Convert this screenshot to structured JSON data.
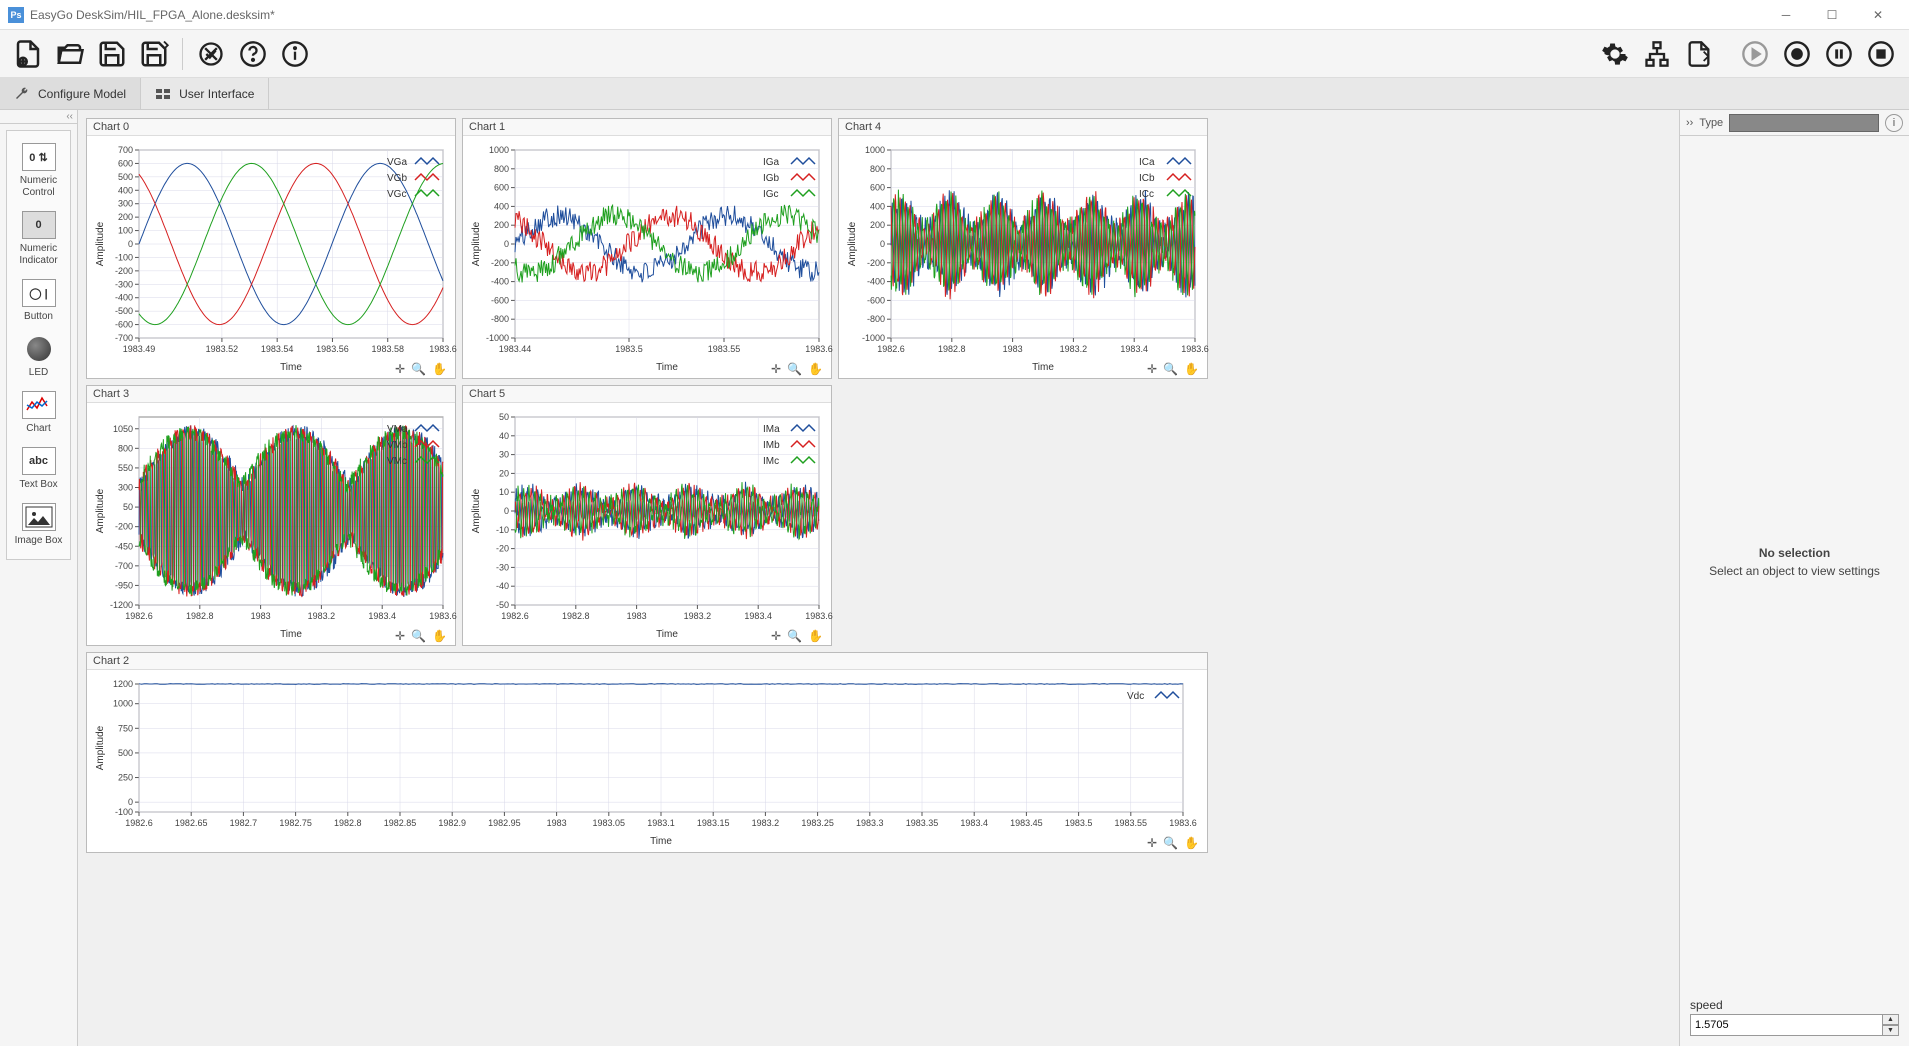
{
  "window": {
    "title": "EasyGo DeskSim/HIL_FPGA_Alone.desksim*",
    "app_badge": "Ps"
  },
  "tabs": {
    "configure": "Configure Model",
    "userinterface": "User Interface"
  },
  "palette": {
    "numeric_control": "Numeric Control",
    "numeric_indicator": "Numeric Indicator",
    "button": "Button",
    "led": "LED",
    "chart": "Chart",
    "textbox": "Text Box",
    "imagebox": "Image Box"
  },
  "right_panel": {
    "type_label": "Type",
    "no_selection_title": "No selection",
    "no_selection_sub": "Select an object to view settings",
    "speed_label": "speed",
    "speed_value": "1.5705"
  },
  "colors": {
    "series_a": "#1f4e9c",
    "series_b": "#d62020",
    "series_c": "#1fa01f",
    "grid": "#d8d8e8",
    "axis": "#555555",
    "bg": "#ffffff"
  },
  "charts": [
    {
      "id": "chart0",
      "title": "Chart 0",
      "xlabel": "Time",
      "ylabel": "Amplitude",
      "ylim": [
        -700,
        700
      ],
      "ytick_step": 100,
      "xlim": [
        1983.49,
        1983.6
      ],
      "xticks": [
        1983.49,
        1983.52,
        1983.54,
        1983.56,
        1983.58,
        1983.6
      ],
      "series": [
        {
          "name": "VGa",
          "color": "#1f4e9c",
          "type": "sine",
          "amp": 600,
          "freq": 90,
          "phase": 0
        },
        {
          "name": "VGb",
          "color": "#d62020",
          "type": "sine",
          "amp": 600,
          "freq": 90,
          "phase": 2.094
        },
        {
          "name": "VGc",
          "color": "#1fa01f",
          "type": "sine",
          "amp": 600,
          "freq": 90,
          "phase": 4.189
        }
      ]
    },
    {
      "id": "chart1",
      "title": "Chart 1",
      "xlabel": "Time",
      "ylabel": "Amplitude",
      "ylim": [
        -1000,
        1000
      ],
      "ytick_step": 200,
      "xlim": [
        1983.44,
        1983.6
      ],
      "xticks": [
        1983.44,
        1983.5,
        1983.55,
        1983.6
      ],
      "series": [
        {
          "name": "IGa",
          "color": "#1f4e9c",
          "type": "noisy_sine",
          "amp": 300,
          "freq": 70,
          "phase": 0,
          "noise": 120
        },
        {
          "name": "IGb",
          "color": "#d62020",
          "type": "noisy_sine",
          "amp": 300,
          "freq": 70,
          "phase": 2.094,
          "noise": 120
        },
        {
          "name": "IGc",
          "color": "#1fa01f",
          "type": "noisy_sine",
          "amp": 300,
          "freq": 70,
          "phase": 4.189,
          "noise": 120
        }
      ]
    },
    {
      "id": "chart4",
      "title": "Chart 4",
      "xlabel": "Time",
      "ylabel": "Amplitude",
      "ylim": [
        -1000,
        1000
      ],
      "ytick_step": 200,
      "xlim": [
        1982.6,
        1983.6
      ],
      "xticks": [
        1982.6,
        1982.8,
        1983,
        1983.2,
        1983.4,
        1983.6
      ],
      "series": [
        {
          "name": "ICa",
          "color": "#1f4e9c",
          "type": "dense_noise",
          "amp": 500,
          "freq": 400,
          "phase": 0,
          "noise": 100
        },
        {
          "name": "ICb",
          "color": "#d62020",
          "type": "dense_noise",
          "amp": 500,
          "freq": 400,
          "phase": 2.094,
          "noise": 100
        },
        {
          "name": "ICc",
          "color": "#1fa01f",
          "type": "dense_noise",
          "amp": 500,
          "freq": 400,
          "phase": 4.189,
          "noise": 100
        }
      ]
    },
    {
      "id": "chart3",
      "title": "Chart 3",
      "xlabel": "Time",
      "ylabel": "Amplitude",
      "ylim": [
        -1200,
        1200
      ],
      "ytick_step": 250,
      "xlim": [
        1982.6,
        1983.6
      ],
      "xticks": [
        1982.6,
        1982.8,
        1983,
        1983.2,
        1983.4,
        1983.6
      ],
      "series": [
        {
          "name": "VMa",
          "color": "#1f4e9c",
          "type": "pwm",
          "amp": 1000,
          "freq": 300,
          "phase": 0,
          "noise": 200
        },
        {
          "name": "VMb",
          "color": "#d62020",
          "type": "pwm",
          "amp": 1000,
          "freq": 300,
          "phase": 2.094,
          "noise": 200
        },
        {
          "name": "VMc",
          "color": "#1fa01f",
          "type": "pwm",
          "amp": 1000,
          "freq": 300,
          "phase": 4.189,
          "noise": 200
        }
      ]
    },
    {
      "id": "chart5",
      "title": "Chart 5",
      "xlabel": "Time",
      "ylabel": "Amplitude",
      "ylim": [
        -50,
        50
      ],
      "ytick_step": 10,
      "xlim": [
        1982.6,
        1983.6
      ],
      "xticks": [
        1982.6,
        1982.8,
        1983,
        1983.2,
        1983.4,
        1983.6
      ],
      "series": [
        {
          "name": "IMa",
          "color": "#1f4e9c",
          "type": "dense_noise",
          "amp": 12,
          "freq": 350,
          "phase": 0,
          "noise": 4
        },
        {
          "name": "IMb",
          "color": "#d62020",
          "type": "dense_noise",
          "amp": 12,
          "freq": 350,
          "phase": 2.094,
          "noise": 4
        },
        {
          "name": "IMc",
          "color": "#1fa01f",
          "type": "dense_noise",
          "amp": 12,
          "freq": 350,
          "phase": 4.189,
          "noise": 4
        }
      ]
    },
    {
      "id": "chart2",
      "title": "Chart 2",
      "wide": true,
      "xlabel": "Time",
      "ylabel": "Amplitude",
      "ylim": [
        -100,
        1200
      ],
      "ytick_step": 250,
      "yticks": [
        -100,
        0,
        250,
        500,
        750,
        1000,
        1200
      ],
      "xlim": [
        1982.6,
        1983.6
      ],
      "xticks": [
        1982.6,
        1982.65,
        1982.7,
        1982.75,
        1982.8,
        1982.85,
        1982.9,
        1982.95,
        1983,
        1983.05,
        1983.1,
        1983.15,
        1983.2,
        1983.25,
        1983.3,
        1983.35,
        1983.4,
        1983.45,
        1983.5,
        1983.55,
        1983.6
      ],
      "series": [
        {
          "name": "Vdc",
          "color": "#1f4e9c",
          "type": "flat",
          "value": 1200
        }
      ]
    }
  ]
}
